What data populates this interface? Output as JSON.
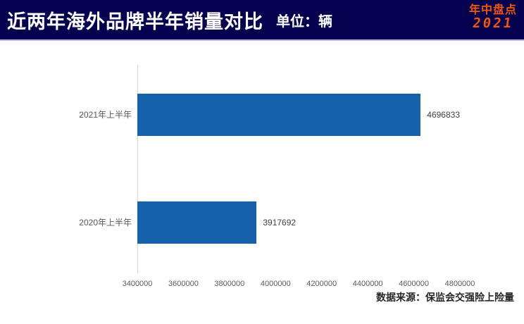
{
  "header": {
    "title": "近两年海外品牌半年销量对比",
    "unit_label": "单位：辆",
    "badge_line1": "年中盘点",
    "badge_line2": "2021",
    "bg_color": "#05014f",
    "badge_color": "#f0560e"
  },
  "chart_data": {
    "type": "bar",
    "orientation": "horizontal",
    "title": "近两年海外品牌半年销量对比",
    "unit": "辆",
    "categories": [
      "2021年上半年",
      "2020年上半年"
    ],
    "values": [
      4696833,
      3917692
    ],
    "xlim": [
      3400000,
      4800000
    ],
    "x_ticks": [
      3400000,
      3600000,
      3800000,
      4000000,
      4200000,
      4400000,
      4600000,
      4800000
    ],
    "bar_color": "#1561ac",
    "axis_line_color": "#d9d9d9",
    "grid": false,
    "legend": false
  },
  "footer": {
    "source_note": "数据来源：保监会交强险上险量"
  }
}
